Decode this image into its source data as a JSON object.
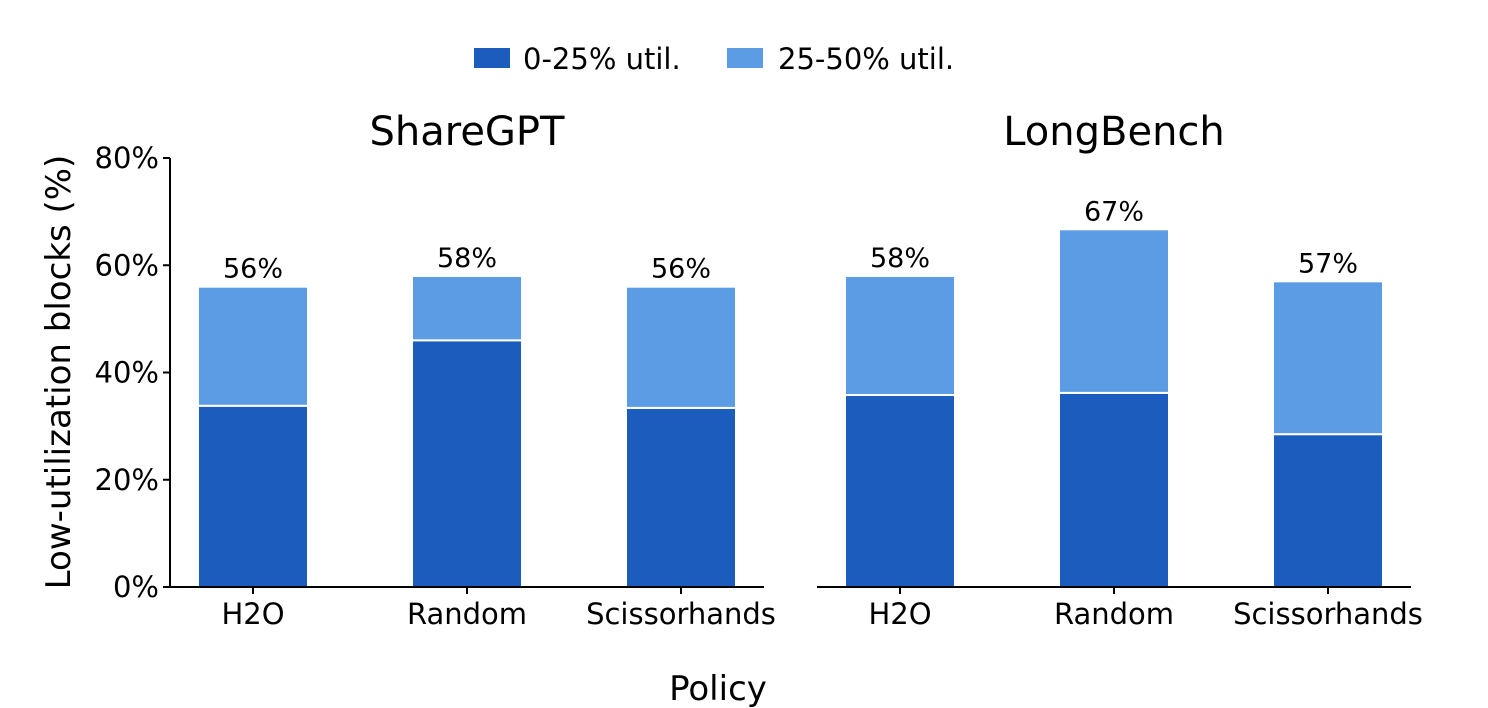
{
  "chart_data": {
    "type": "bar",
    "stacked": true,
    "xlabel": "Policy",
    "ylabel": "Low-utilization blocks (%)",
    "ylim": [
      0,
      80
    ],
    "yticks": [
      "0%",
      "20%",
      "40%",
      "60%",
      "80%"
    ],
    "legend": {
      "placement": "top-center",
      "entries": [
        {
          "name": "0-25% util.",
          "color": "#1b5cbd"
        },
        {
          "name": "25-50% util.",
          "color": "#5b9ce4"
        }
      ]
    },
    "categories": [
      "H2O",
      "Random",
      "Scissorhands"
    ],
    "panels": [
      {
        "title": "ShareGPT",
        "series": [
          {
            "name": "0-25% util.",
            "values": [
              33.8,
              46.0,
              33.4
            ]
          },
          {
            "name": "25-50% util.",
            "values": [
              22.2,
              12.0,
              22.6
            ]
          }
        ],
        "totals": [
          "56%",
          "58%",
          "56%"
        ]
      },
      {
        "title": "LongBench",
        "series": [
          {
            "name": "0-25% util.",
            "values": [
              35.8,
              36.2,
              28.5
            ]
          },
          {
            "name": "25-50% util.",
            "values": [
              22.2,
              30.5,
              28.5
            ]
          }
        ],
        "totals": [
          "58%",
          "67%",
          "57%"
        ]
      }
    ]
  }
}
